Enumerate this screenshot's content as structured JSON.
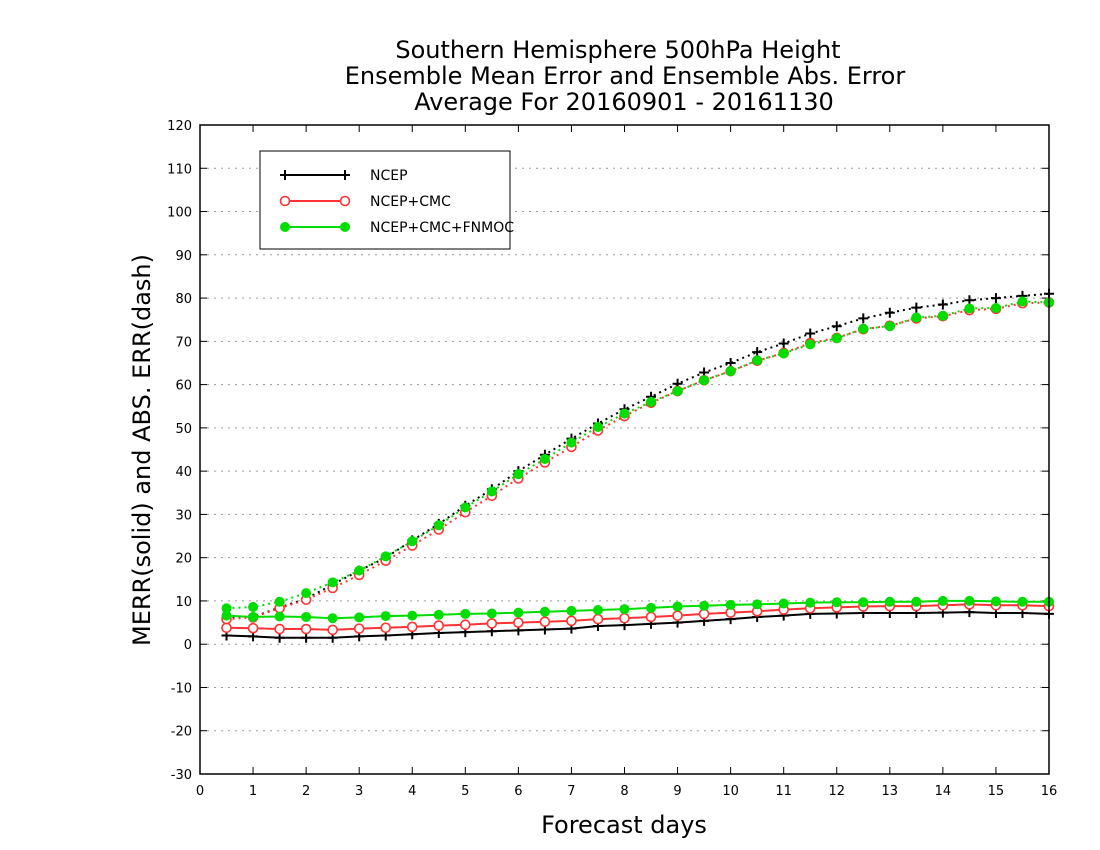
{
  "chart_data": {
    "type": "line",
    "title": [
      "Southern Hemisphere 500hPa Height",
      "Ensemble Mean Error and Ensemble Abs. Error",
      "Average For 20160901 - 20161130"
    ],
    "xlabel": "Forecast days",
    "ylabel": "MERR(solid) and ABS. ERR(dash)",
    "xlim": [
      0,
      16
    ],
    "ylim": [
      -30,
      120
    ],
    "xticks": [
      "0",
      "1",
      "2",
      "3",
      "4",
      "5",
      "6",
      "7",
      "8",
      "9",
      "10",
      "11",
      "12",
      "13",
      "14",
      "15",
      "16"
    ],
    "yticks": [
      "-30",
      "-20",
      "-10",
      "0",
      "10",
      "20",
      "30",
      "40",
      "50",
      "60",
      "70",
      "80",
      "90",
      "100",
      "110",
      "120"
    ],
    "grid": "horizontal dotted",
    "legend_position": "top-left",
    "x": [
      0.5,
      1,
      1.5,
      2,
      2.5,
      3,
      3.5,
      4,
      4.5,
      5,
      5.5,
      6,
      6.5,
      7,
      7.5,
      8,
      8.5,
      9,
      9.5,
      10,
      10.5,
      11,
      11.5,
      12,
      12.5,
      13,
      13.5,
      14,
      14.5,
      15,
      15.5,
      16
    ],
    "series": [
      {
        "name": "NCEP",
        "color": "#000000",
        "marker": "plus",
        "merr": [
          2,
          1.8,
          1.5,
          1.5,
          1.5,
          1.8,
          2,
          2.3,
          2.6,
          2.8,
          3,
          3.2,
          3.4,
          3.6,
          4.2,
          4.4,
          4.7,
          5,
          5.4,
          5.8,
          6.3,
          6.6,
          7,
          7.1,
          7.2,
          7.2,
          7.2,
          7.3,
          7.4,
          7.2,
          7.2,
          7
        ],
        "abs_err": [
          6,
          6.3,
          8.5,
          10.5,
          13.8,
          17,
          20,
          24,
          27.8,
          32,
          35.8,
          40,
          43.8,
          47.5,
          51,
          54.3,
          57.2,
          60.2,
          62.8,
          65,
          67.5,
          69.5,
          71.8,
          73.5,
          75.3,
          76.6,
          77.8,
          78.5,
          79.5,
          80,
          80.5,
          81
        ]
      },
      {
        "name": "NCEP+CMC",
        "color": "#ff3333",
        "marker": "open-circle",
        "merr": [
          3.8,
          3.7,
          3.5,
          3.5,
          3.3,
          3.6,
          3.8,
          4,
          4.3,
          4.5,
          4.8,
          5,
          5.2,
          5.4,
          5.8,
          6,
          6.3,
          6.6,
          7,
          7.3,
          7.6,
          8,
          8.3,
          8.5,
          8.7,
          8.8,
          8.8,
          9,
          9.2,
          9,
          9,
          8.8
        ],
        "abs_err": [
          5.8,
          6.2,
          8.3,
          10.3,
          13,
          16,
          19.3,
          22.8,
          26.5,
          30.5,
          34.3,
          38.3,
          42,
          45.6,
          49.4,
          52.7,
          55.8,
          58.5,
          61,
          63.1,
          65.5,
          67.3,
          69.6,
          70.8,
          72.8,
          73.6,
          75.3,
          75.8,
          77.2,
          77.5,
          78.8,
          79
        ]
      },
      {
        "name": "NCEP+CMC+FNMOC",
        "color": "#00dd00",
        "marker": "filled-circle",
        "merr": [
          6.6,
          6.3,
          6.4,
          6.3,
          6,
          6.2,
          6.5,
          6.6,
          6.8,
          7,
          7.1,
          7.3,
          7.5,
          7.7,
          7.9,
          8.1,
          8.4,
          8.7,
          8.9,
          9.1,
          9.2,
          9.4,
          9.6,
          9.7,
          9.7,
          9.8,
          9.8,
          10,
          10,
          9.9,
          9.8,
          9.8
        ],
        "abs_err": [
          8.3,
          8.6,
          9.8,
          11.8,
          14.3,
          17,
          20.3,
          23.8,
          27.5,
          31.6,
          35.3,
          39.3,
          42.8,
          46.6,
          50.2,
          53.3,
          56,
          58.5,
          61,
          63.1,
          65.6,
          67.2,
          69.3,
          70.7,
          72.9,
          73.5,
          75.5,
          75.9,
          77.6,
          77.7,
          79.2,
          79
        ]
      }
    ]
  }
}
